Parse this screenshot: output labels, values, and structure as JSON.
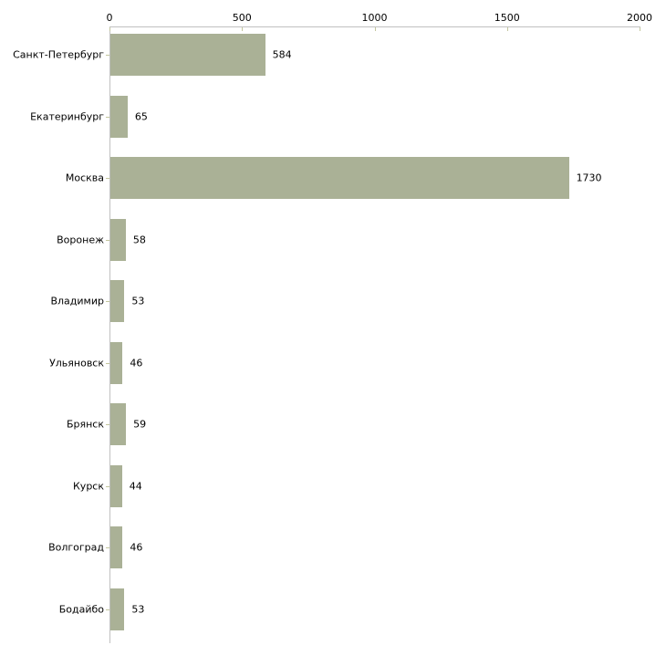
{
  "chart_data": {
    "type": "bar",
    "orientation": "horizontal",
    "title": "",
    "xlabel": "",
    "ylabel": "",
    "categories": [
      "Санкт-Петербург",
      "Екатеринбург",
      "Москва",
      "Воронеж",
      "Владимир",
      "Ульяновск",
      "Брянск",
      "Курск",
      "Волгоград",
      "Бодайбо"
    ],
    "values": [
      584,
      65,
      1730,
      58,
      53,
      46,
      59,
      44,
      46,
      53
    ],
    "value_labels": [
      "584",
      "65",
      "1730",
      "58",
      "53",
      "46",
      "59",
      "44",
      "46",
      "53"
    ],
    "x_ticks": [
      0,
      500,
      1000,
      1500,
      2000
    ],
    "x_tick_labels": [
      "0",
      "500",
      "1000",
      "1500",
      "2000"
    ],
    "xlim": [
      0,
      2000
    ],
    "grid": false,
    "legend": false,
    "axis_position": "top",
    "colors": {
      "bar": "#aab196",
      "axis_line": "#c0c0c0",
      "tick_mark": "#c3c69d",
      "text": "#000000",
      "background": "#ffffff"
    }
  }
}
